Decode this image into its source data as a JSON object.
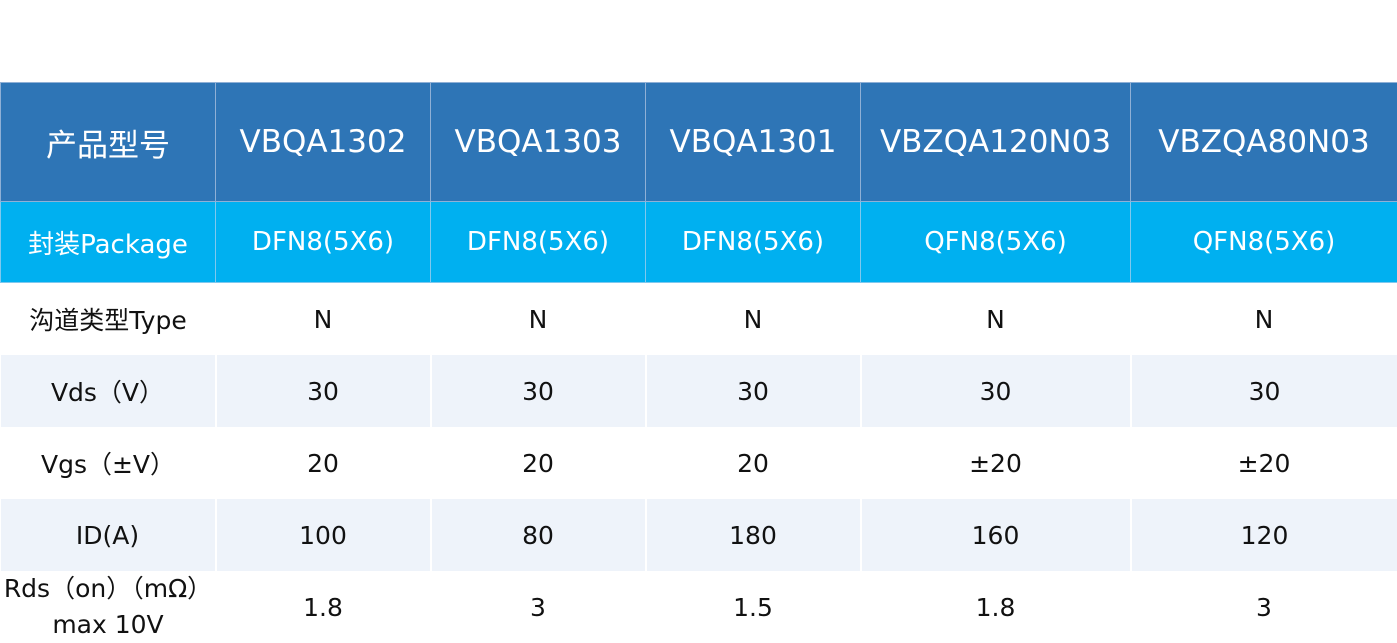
{
  "table": {
    "header": [
      "产品型号",
      "VBQA1302",
      "VBQA1303",
      "VBQA1301",
      "VBZQA120N03",
      "VBZQA80N03"
    ],
    "package": [
      "封装Package",
      "DFN8(5X6)",
      "DFN8(5X6)",
      "DFN8(5X6)",
      "QFN8(5X6)",
      "QFN8(5X6)"
    ],
    "rows": [
      [
        "沟道类型Type",
        "N",
        "N",
        "N",
        "N",
        "N"
      ],
      [
        "Vds（V）",
        "30",
        "30",
        "30",
        "30",
        "30"
      ],
      [
        "Vgs（±V）",
        "20",
        "20",
        "20",
        "±20",
        "±20"
      ],
      [
        "ID(A)",
        "100",
        "80",
        "180",
        "160",
        "120"
      ],
      [
        "Rds（on）（mΩ）max 10V",
        "1.8",
        "3",
        "1.5",
        "1.8",
        "3"
      ]
    ]
  },
  "colors": {
    "header_bg": "#2E75B6",
    "package_bg": "#00B0F0",
    "alt_row_bg": "#EEF3FA"
  }
}
